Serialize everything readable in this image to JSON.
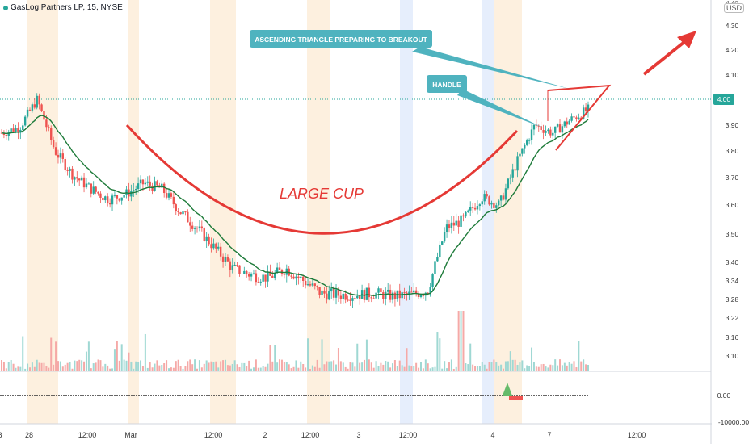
{
  "header": {
    "title": "GasLog Partners LP, 15, NYSE",
    "currency": "USD",
    "top_tick": "4.40"
  },
  "colors": {
    "up": "#26a69a",
    "down": "#ef5350",
    "ma": "#1e7b3a",
    "annotation": "#e53935",
    "callout": "#4fb3bf",
    "session_orange": "#fdf0df",
    "session_blue": "#e6eefc"
  },
  "chart_data": {
    "type": "candlestick",
    "title": "GasLog Partners LP, 15, NYSE",
    "price_axis": {
      "ticks": [
        "4.30",
        "4.20",
        "4.10",
        "3.90",
        "3.80",
        "3.70",
        "3.60",
        "3.50",
        "3.40",
        "3.34",
        "3.28",
        "3.22",
        "3.16",
        "3.10"
      ],
      "last_price": "4.00"
    },
    "time_axis": {
      "ticks": [
        "28",
        "12:00",
        "Mar",
        "12:00",
        "2",
        "12:00",
        "3",
        "12:00",
        "4",
        "7",
        "12:00",
        "8"
      ]
    },
    "oscillator_axis": {
      "ticks": [
        "0.00",
        "-10000.00"
      ]
    },
    "price_path": [
      [
        "28",
        3.87
      ],
      [
        "28",
        3.89
      ],
      [
        "28",
        4.0
      ],
      [
        "28",
        3.8
      ],
      [
        "28",
        3.71
      ],
      [
        "12:00",
        3.66
      ],
      [
        "12:00",
        3.62
      ],
      [
        "Mar",
        3.64
      ],
      [
        "Mar",
        3.68
      ],
      [
        "Mar",
        3.66
      ],
      [
        "Mar",
        3.58
      ],
      [
        "2",
        3.52
      ],
      [
        "2",
        3.45
      ],
      [
        "12:00",
        3.38
      ],
      [
        "12:00",
        3.36
      ],
      [
        "12:00",
        3.35
      ],
      [
        "3",
        3.38
      ],
      [
        "3",
        3.34
      ],
      [
        "3",
        3.3
      ],
      [
        "12:00",
        3.295
      ],
      [
        "12:00",
        3.295
      ],
      [
        "4",
        3.3
      ],
      [
        "4",
        3.29
      ],
      [
        "4",
        3.295
      ],
      [
        "7",
        3.31
      ],
      [
        "7",
        3.52
      ],
      [
        "7",
        3.55
      ],
      [
        "7",
        3.63
      ],
      [
        "7",
        3.6
      ],
      [
        "12:00",
        3.76
      ],
      [
        "12:00",
        3.9
      ],
      [
        "12:00",
        3.87
      ],
      [
        "12:00",
        3.92
      ],
      [
        "8",
        3.96
      ]
    ],
    "annotations": [
      {
        "id": "ascending",
        "text": "ASCENDING TRIANGLE PREPARING TO BREAKOUT"
      },
      {
        "id": "handle",
        "text": "HANDLE"
      },
      {
        "id": "cup",
        "text": "LARGE CUP"
      }
    ]
  }
}
